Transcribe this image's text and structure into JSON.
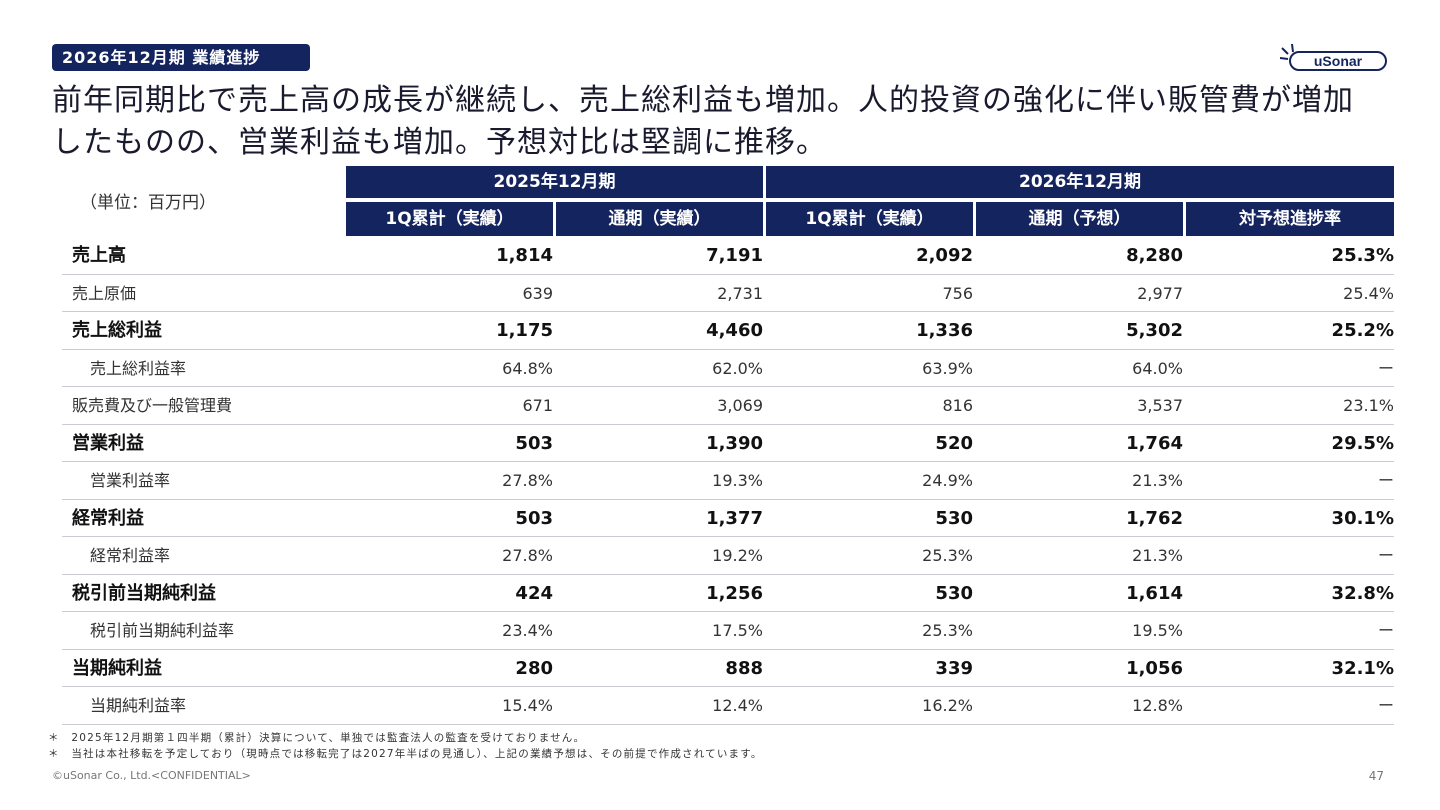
{
  "badge": "2026年12月期 業績進捗",
  "logo_text": "uSonar",
  "headline": {
    "line1": "前年同期比で売上高の成長が継続し、売上総利益も増加。人的投資の強化に伴い販管費が増加",
    "line2": "したものの、営業利益も増加。予想対比は堅調に推移。"
  },
  "unit": "（単位：百万円）",
  "table": {
    "groups": [
      "2025年12月期",
      "2026年12月期"
    ],
    "columns": [
      "1Q累計（実績）",
      "通期（実績）",
      "1Q累計（実績）",
      "通期（予想）",
      "対予想進捗率"
    ],
    "rows": [
      {
        "label": "売上高",
        "style": "bold",
        "values": [
          "1,814",
          "7,191",
          "2,092",
          "8,280",
          "25.3%"
        ]
      },
      {
        "label": "売上原価",
        "style": "norm",
        "values": [
          "639",
          "2,731",
          "756",
          "2,977",
          "25.4%"
        ]
      },
      {
        "label": "売上総利益",
        "style": "bold",
        "values": [
          "1,175",
          "4,460",
          "1,336",
          "5,302",
          "25.2%"
        ]
      },
      {
        "label": "売上総利益率",
        "style": "sub",
        "values": [
          "64.8%",
          "62.0%",
          "63.9%",
          "64.0%",
          "ー"
        ]
      },
      {
        "label": "販売費及び一般管理費",
        "style": "norm",
        "values": [
          "671",
          "3,069",
          "816",
          "3,537",
          "23.1%"
        ]
      },
      {
        "label": "営業利益",
        "style": "bold",
        "values": [
          "503",
          "1,390",
          "520",
          "1,764",
          "29.5%"
        ]
      },
      {
        "label": "営業利益率",
        "style": "sub",
        "values": [
          "27.8%",
          "19.3%",
          "24.9%",
          "21.3%",
          "ー"
        ]
      },
      {
        "label": "経常利益",
        "style": "bold",
        "values": [
          "503",
          "1,377",
          "530",
          "1,762",
          "30.1%"
        ]
      },
      {
        "label": "経常利益率",
        "style": "sub",
        "values": [
          "27.8%",
          "19.2%",
          "25.3%",
          "21.3%",
          "ー"
        ]
      },
      {
        "label": "税引前当期純利益",
        "style": "bold",
        "values": [
          "424",
          "1,256",
          "530",
          "1,614",
          "32.8%"
        ]
      },
      {
        "label": "税引前当期純利益率",
        "style": "sub",
        "values": [
          "23.4%",
          "17.5%",
          "25.3%",
          "19.5%",
          "ー"
        ]
      },
      {
        "label": "当期純利益",
        "style": "bold",
        "values": [
          "280",
          "888",
          "339",
          "1,056",
          "32.1%"
        ]
      },
      {
        "label": "当期純利益率",
        "style": "sub",
        "values": [
          "15.4%",
          "12.4%",
          "16.2%",
          "12.8%",
          "ー"
        ]
      }
    ]
  },
  "notes": [
    "＊　2025年12月期第１四半期（累計）決算について、単独では監査法人の監査を受けておりません。",
    "＊　当社は本社移転を予定しており（現時点では移転完了は2027年半ばの見通し）、上記の業績予想は、その前提で作成されています。"
  ],
  "footer": "©uSonar Co., Ltd.<CONFIDENTIAL>",
  "page_number": "47",
  "colors": {
    "navy": "#14245e",
    "border": "#c9ccd3"
  }
}
